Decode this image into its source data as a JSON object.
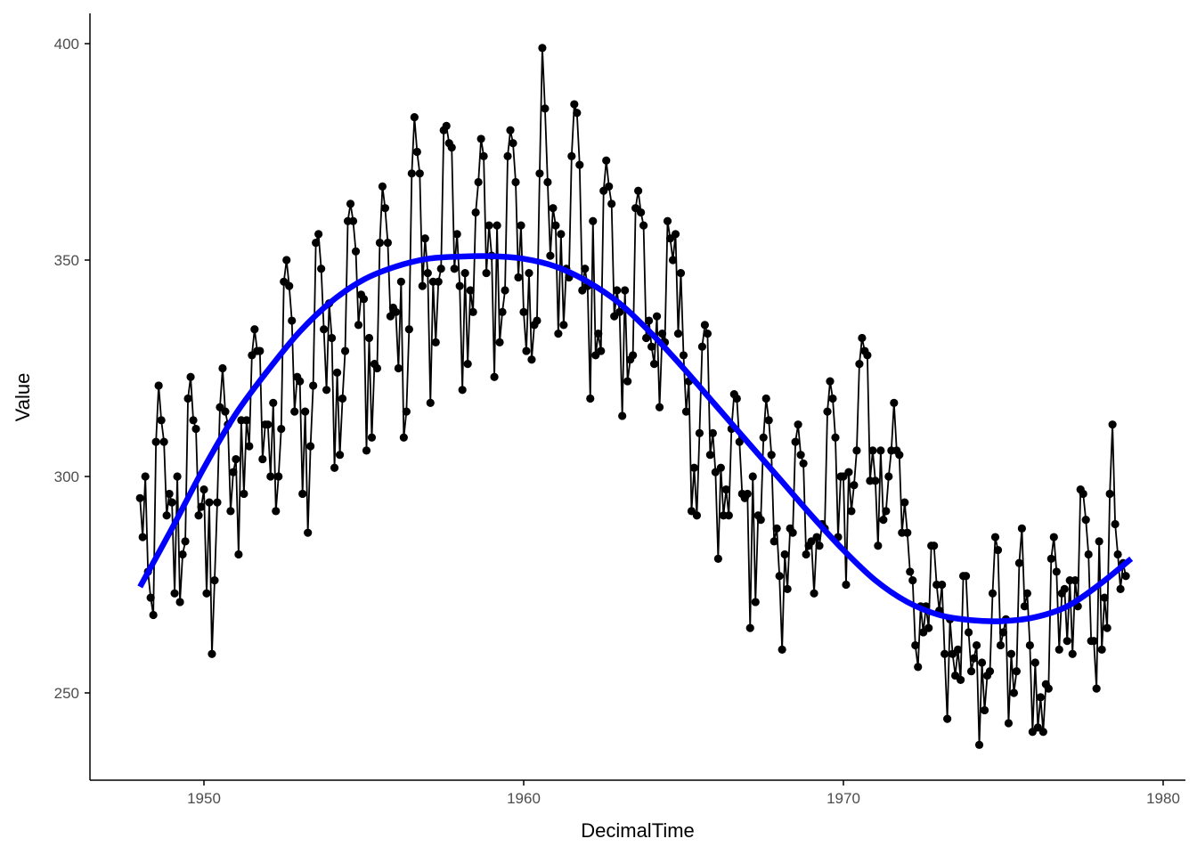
{
  "colors": {
    "data_line": "#000000",
    "data_points": "#000000",
    "smooth_curve": "#0000ff",
    "axis": "#000000",
    "tick_label": "#4d4d4d",
    "background": "#ffffff"
  },
  "chart_data": {
    "type": "line",
    "title": "",
    "xlabel": "DecimalTime",
    "ylabel": "Value",
    "xlim": [
      1946.5,
      1980.5
    ],
    "ylim": [
      231,
      407
    ],
    "grid": false,
    "legend": "none",
    "x_ticks": [
      1950,
      1960,
      1970,
      1980
    ],
    "y_ticks": [
      250,
      300,
      350,
      400
    ],
    "x_tick_labels": [
      "1950",
      "1960",
      "1970",
      "1980"
    ],
    "y_tick_labels": [
      "250",
      "300",
      "350",
      "400"
    ],
    "series": [
      {
        "type": "line+points",
        "x_start": 1948.0,
        "x_step": 0.08333,
        "values": [
          295,
          286,
          300,
          278,
          272,
          268,
          308,
          321,
          313,
          308,
          291,
          296,
          294,
          273,
          300,
          271,
          282,
          285,
          318,
          323,
          313,
          311,
          291,
          293,
          297,
          273,
          294,
          259,
          276,
          294,
          316,
          325,
          315,
          312,
          292,
          301,
          304,
          282,
          313,
          296,
          313,
          307,
          328,
          334,
          329,
          329,
          304,
          312,
          312,
          300,
          317,
          292,
          300,
          311,
          345,
          350,
          344,
          336,
          315,
          323,
          322,
          296,
          315,
          287,
          307,
          321,
          354,
          356,
          348,
          334,
          320,
          340,
          332,
          302,
          324,
          305,
          318,
          329,
          359,
          363,
          359,
          352,
          335,
          342,
          341,
          306,
          332,
          309,
          326,
          325,
          354,
          367,
          362,
          354,
          337,
          339,
          338,
          325,
          345,
          309,
          315,
          334,
          370,
          383,
          375,
          370,
          344,
          355,
          347,
          317,
          345,
          331,
          345,
          348,
          380,
          381,
          377,
          376,
          348,
          356,
          344,
          320,
          347,
          326,
          343,
          338,
          361,
          368,
          378,
          374,
          347,
          358,
          351,
          323,
          358,
          331,
          338,
          343,
          374,
          380,
          377,
          368,
          346,
          358,
          338,
          329,
          347,
          327,
          335,
          336,
          370,
          399,
          385,
          368,
          351,
          362,
          358,
          333,
          356,
          335,
          348,
          346,
          374,
          386,
          384,
          372,
          343,
          348,
          344,
          318,
          359,
          328,
          333,
          329,
          366,
          373,
          367,
          363,
          337,
          343,
          338,
          314,
          343,
          322,
          327,
          328,
          362,
          366,
          361,
          358,
          332,
          336,
          330,
          326,
          337,
          316,
          333,
          331,
          359,
          355,
          350,
          356,
          333,
          347,
          328,
          315,
          322,
          292,
          302,
          291,
          310,
          330,
          335,
          333,
          305,
          310,
          301,
          281,
          302,
          291,
          297,
          291,
          311,
          319,
          318,
          308,
          296,
          295,
          296,
          265,
          300,
          271,
          291,
          290,
          309,
          318,
          313,
          305,
          285,
          288,
          277,
          260,
          282,
          274,
          288,
          287,
          308,
          312,
          305,
          303,
          282,
          284,
          285,
          273,
          286,
          284,
          289,
          288,
          315,
          322,
          318,
          309,
          286,
          300,
          300,
          275,
          301,
          292,
          298,
          306,
          326,
          332,
          329,
          328,
          299,
          306,
          299,
          284,
          306,
          290,
          292,
          300,
          306,
          317,
          306,
          305,
          287,
          294,
          287,
          278,
          276,
          261,
          256,
          270,
          264,
          270,
          265,
          284,
          284,
          275,
          269,
          275,
          259,
          244,
          267,
          259,
          254,
          260,
          253,
          277,
          277,
          264,
          255,
          258,
          261,
          238,
          257,
          246,
          254,
          255,
          273,
          286,
          283,
          261,
          264,
          267,
          243,
          259,
          250,
          255,
          280,
          288,
          270,
          273,
          261,
          241,
          257,
          242,
          249,
          241,
          252,
          251,
          281,
          286,
          278,
          260,
          273,
          274,
          262,
          276,
          259,
          276,
          270,
          297,
          296,
          290,
          282,
          262,
          262,
          251,
          285,
          260,
          272,
          265,
          296,
          312,
          289,
          282,
          274,
          280,
          277
        ]
      },
      {
        "type": "smooth",
        "x": [
          1948.0,
          1949.0,
          1950.0,
          1951.0,
          1952.0,
          1953.0,
          1954.0,
          1955.0,
          1956.0,
          1957.0,
          1958.0,
          1959.0,
          1960.0,
          1961.0,
          1962.0,
          1963.0,
          1964.0,
          1965.0,
          1966.0,
          1967.0,
          1968.0,
          1969.0,
          1970.0,
          1971.0,
          1972.0,
          1973.0,
          1974.0,
          1975.0,
          1976.0,
          1977.0,
          1978.0,
          1979.0
        ],
        "values": [
          274.5,
          288,
          302,
          314.5,
          324.5,
          333.5,
          340.5,
          345.5,
          348.5,
          350.3,
          350.8,
          350.9,
          350.3,
          348.5,
          345,
          340,
          333,
          325,
          316.5,
          308,
          299.5,
          291,
          283,
          276,
          271,
          268,
          266.8,
          266.6,
          267.5,
          270,
          275,
          281
        ]
      }
    ]
  }
}
